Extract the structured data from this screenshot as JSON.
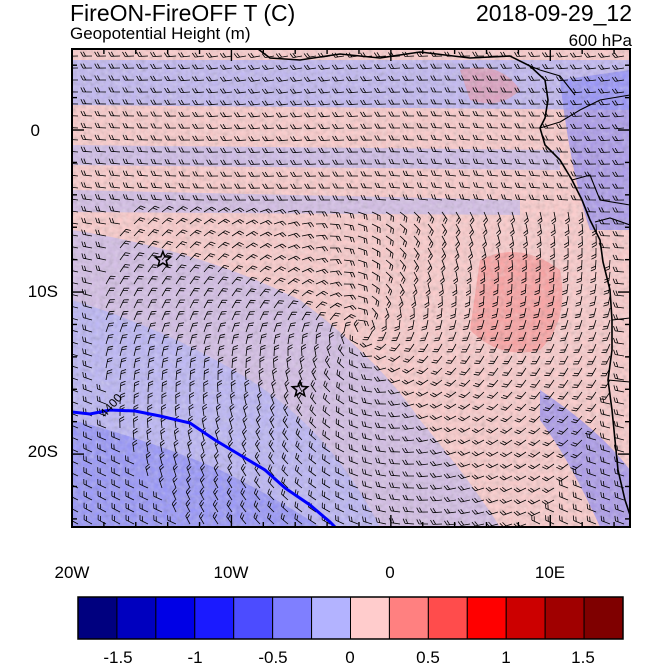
{
  "header": {
    "title_left": "FireON-FireOFF T (C)",
    "title_right": "2018-09-29_12",
    "subtitle_left": "Geopotential Height (m)",
    "subtitle_right": "600 hPa"
  },
  "map": {
    "lon_range": [
      -20,
      15
    ],
    "lat_range": [
      -24.5,
      5
    ],
    "x_ticks": [
      "20W",
      "10W",
      "0",
      "10E"
    ],
    "y_ticks": [
      "0",
      "10S",
      "20S"
    ],
    "contour_label": "4400",
    "markers": [
      {
        "lon": -14.3,
        "lat": -8.0,
        "symbol": "star"
      },
      {
        "lon": -5.7,
        "lat": -16.0,
        "symbol": "star"
      }
    ],
    "colors": {
      "contour": "#0000ff",
      "coast": "#000000"
    }
  },
  "colorbar": {
    "labels": [
      "-1.5",
      "-1",
      "-0.5",
      "0",
      "0.5",
      "1",
      "1.5"
    ],
    "colors": [
      "#00007f",
      "#0000bf",
      "#0000e6",
      "#1a1aff",
      "#4c4cff",
      "#7f7fff",
      "#b3b3ff",
      "#ffcccc",
      "#ff8080",
      "#ff4c4c",
      "#ff0000",
      "#cc0000",
      "#a00000",
      "#7f0000"
    ]
  }
}
